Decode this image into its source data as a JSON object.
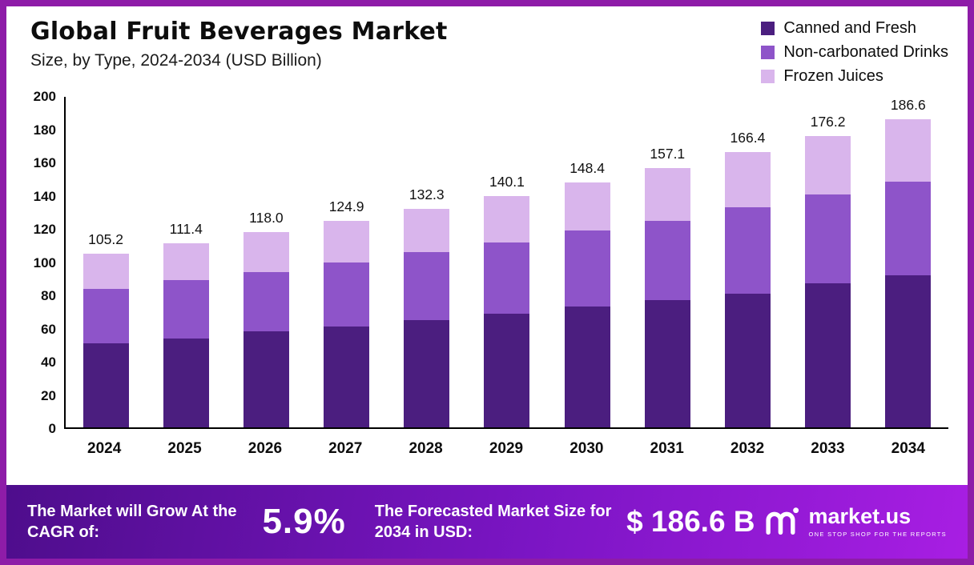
{
  "colors": {
    "frame_border": "#8E1CA8",
    "footer_gradient": [
      "#4E0D8C",
      "#7B15C4",
      "#A81EE3"
    ]
  },
  "header": {
    "title": "Global Fruit Beverages Market",
    "subtitle": "Size, by Type, 2024-2034 (USD Billion)"
  },
  "chart_data": {
    "type": "bar",
    "stacked": true,
    "title": "Global Fruit Beverages Market Size, by Type, 2024-2034 (USD Billion)",
    "categories": [
      "2024",
      "2025",
      "2026",
      "2027",
      "2028",
      "2029",
      "2030",
      "2031",
      "2032",
      "2033",
      "2034"
    ],
    "series": [
      {
        "name": "Canned and Fresh",
        "color": "#4B1E7F",
        "values": [
          51,
          54,
          58,
          61,
          65,
          69,
          73,
          77,
          81,
          87,
          92
        ]
      },
      {
        "name": "Non-carbonated Drinks",
        "color": "#8E54C9",
        "values": [
          33,
          35,
          36,
          39,
          41,
          43,
          46,
          48,
          52,
          54,
          57
        ]
      },
      {
        "name": "Frozen Juices",
        "color": "#D9B5EC",
        "values": [
          21.2,
          22.4,
          24.0,
          24.9,
          26.3,
          28.1,
          29.4,
          32.1,
          33.4,
          35.2,
          37.6
        ]
      }
    ],
    "totals": [
      "105.2",
      "111.4",
      "118.0",
      "124.9",
      "132.3",
      "140.1",
      "148.4",
      "157.1",
      "166.4",
      "176.2",
      "186.6"
    ],
    "xlabel": "",
    "ylabel": "",
    "ylim": [
      0,
      200
    ],
    "yticks": [
      0,
      20,
      40,
      60,
      80,
      100,
      120,
      140,
      160,
      180,
      200
    ],
    "grid": false,
    "legend_position": "top-right"
  },
  "footer": {
    "cagr_label": "The Market will Grow At the CAGR of:",
    "cagr_value": "5.9%",
    "forecast_label": "The Forecasted Market Size for 2034 in USD:",
    "forecast_value": "$ 186.6 B",
    "brand": "market.us",
    "brand_tagline": "ONE STOP SHOP FOR THE REPORTS"
  }
}
